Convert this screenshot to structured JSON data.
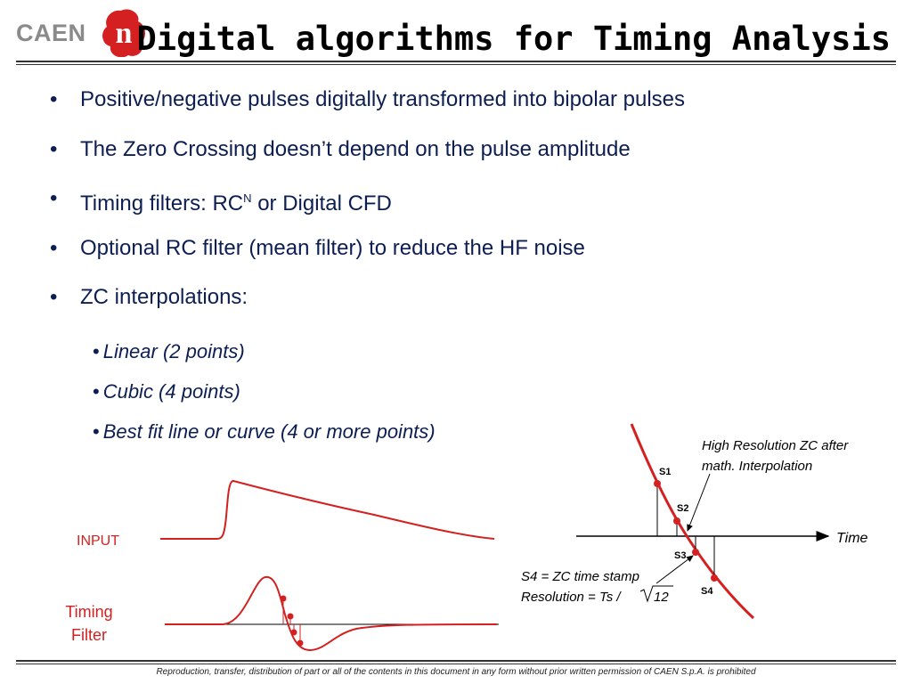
{
  "header": {
    "logo_text": "CAEN",
    "logo_mark": "n",
    "title": "Digital algorithms for Timing Analysis"
  },
  "bullets": [
    {
      "text": "Positive/negative pulses digitally transformed into bipolar pulses"
    },
    {
      "text": "The Zero Crossing doesn’t depend on the pulse amplitude"
    },
    {
      "pre": "Timing filters: RC",
      "sup": "N",
      "post": " or Digital CFD"
    },
    {
      "text": "Optional RC filter (mean filter) to reduce the HF noise"
    },
    {
      "text": "ZC interpolations:"
    }
  ],
  "bullet_symbol": "•",
  "sub_bullets": [
    "Linear (2 points)",
    "Cubic (4 points)",
    "Best fit line or curve (4 or more points)"
  ],
  "figure": {
    "input_label": "INPUT",
    "timing_filter_label_line1": "Timing",
    "timing_filter_label_line2": "Filter",
    "s1": "S1",
    "s2": "S2",
    "s3": "S3",
    "s4": "S4",
    "time_label": "Time",
    "hr_note_line1": "High Resolution ZC after",
    "hr_note_line2": "math. Interpolation",
    "zc_note_line1": "S4 = ZC time stamp",
    "zc_note_line2_prefix": "Resolution = Ts / ",
    "zc_note_line2_radicand": "12"
  },
  "footer": "Reproduction, transfer, distribution of part or all of the contents in this document in any form without prior written permission of  CAEN S.p.A. is prohibited",
  "colors": {
    "accent_red": "#d42020",
    "text_blue": "#0c1e52",
    "logo_gray": "#8a8a8a"
  }
}
